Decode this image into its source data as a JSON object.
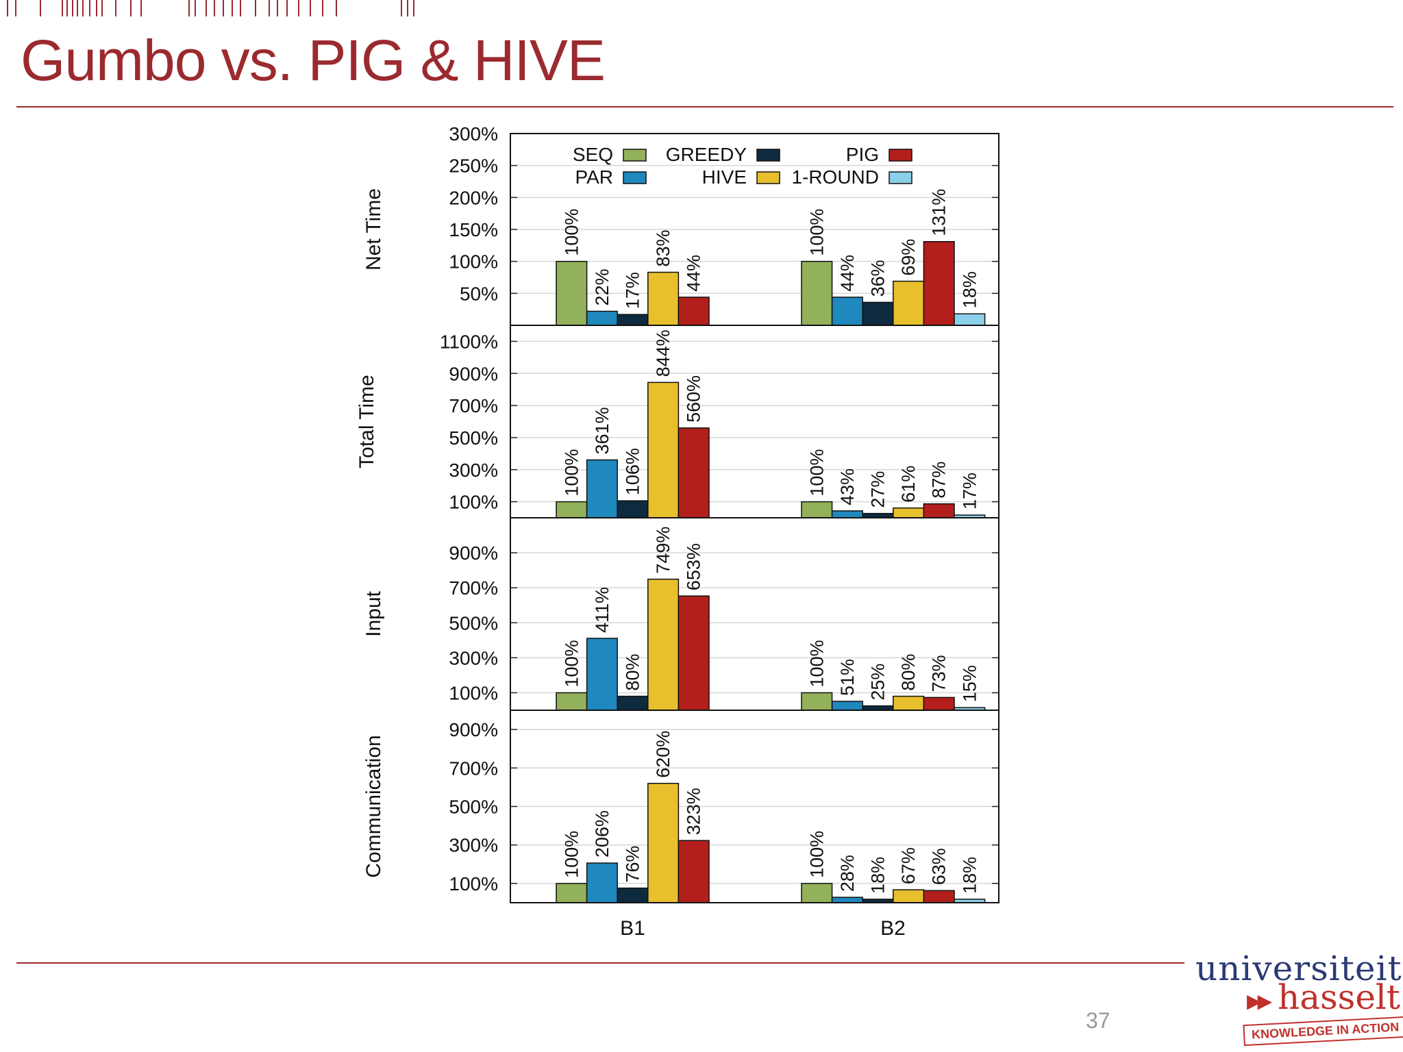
{
  "slide": {
    "title": "Gumbo vs. PIG & HIVE",
    "page_number": "37",
    "logo": {
      "line1": "universiteit",
      "arrows": "▶▶",
      "line2": "hasselt",
      "tagline": "KNOWLEDGE IN ACTION"
    }
  },
  "colors": {
    "accent": "#9b2a2f",
    "SEQ": "#93b05a",
    "PAR": "#1f88bd",
    "GREEDY": "#0e2a3e",
    "HIVE": "#e8bf2d",
    "PIG": "#b31f1c",
    "1-ROUND": "#8ccfe8"
  },
  "chart_data": {
    "type": "bar",
    "categories": [
      "B1",
      "B2"
    ],
    "legend": [
      "SEQ",
      "PAR",
      "GREEDY",
      "HIVE",
      "PIG",
      "1-ROUND"
    ],
    "panels": [
      {
        "ylabel": "Net Time",
        "ylim": [
          0,
          300
        ],
        "ticks": [
          50,
          100,
          150,
          200,
          250,
          300
        ],
        "tick_labels": [
          "50%",
          "100%",
          "150%",
          "200%",
          "250%",
          "300%"
        ],
        "series": [
          {
            "name": "SEQ",
            "values": [
              100,
              100
            ],
            "labels": [
              "100%",
              "100%"
            ]
          },
          {
            "name": "PAR",
            "values": [
              22,
              44
            ],
            "labels": [
              "22%",
              "44%"
            ]
          },
          {
            "name": "GREEDY",
            "values": [
              17,
              36
            ],
            "labels": [
              "17%",
              "36%"
            ]
          },
          {
            "name": "HIVE",
            "values": [
              83,
              69
            ],
            "labels": [
              "83%",
              "69%"
            ]
          },
          {
            "name": "PIG",
            "values": [
              44,
              131
            ],
            "labels": [
              "44%",
              "131%"
            ]
          },
          {
            "name": "1-ROUND",
            "values": [
              null,
              18
            ],
            "labels": [
              "",
              "18%"
            ]
          }
        ]
      },
      {
        "ylabel": "Total Time",
        "ylim": [
          0,
          1200
        ],
        "ticks": [
          100,
          300,
          500,
          700,
          900,
          1100
        ],
        "tick_labels": [
          "100%",
          "300%",
          "500%",
          "700%",
          "900%",
          "1100%"
        ],
        "series": [
          {
            "name": "SEQ",
            "values": [
              100,
              100
            ],
            "labels": [
              "100%",
              "100%"
            ]
          },
          {
            "name": "PAR",
            "values": [
              361,
              43
            ],
            "labels": [
              "361%",
              "43%"
            ]
          },
          {
            "name": "GREEDY",
            "values": [
              106,
              27
            ],
            "labels": [
              "106%",
              "27%"
            ]
          },
          {
            "name": "HIVE",
            "values": [
              844,
              61
            ],
            "labels": [
              "844%",
              "61%"
            ]
          },
          {
            "name": "PIG",
            "values": [
              560,
              87
            ],
            "labels": [
              "560%",
              "87%"
            ]
          },
          {
            "name": "1-ROUND",
            "values": [
              null,
              17
            ],
            "labels": [
              "",
              "17%"
            ]
          }
        ]
      },
      {
        "ylabel": "Input",
        "ylim": [
          0,
          1100
        ],
        "ticks": [
          100,
          300,
          500,
          700,
          900
        ],
        "tick_labels": [
          "100%",
          "300%",
          "500%",
          "700%",
          "900%"
        ],
        "series": [
          {
            "name": "SEQ",
            "values": [
              100,
              100
            ],
            "labels": [
              "100%",
              "100%"
            ]
          },
          {
            "name": "PAR",
            "values": [
              411,
              51
            ],
            "labels": [
              "411%",
              "51%"
            ]
          },
          {
            "name": "GREEDY",
            "values": [
              80,
              25
            ],
            "labels": [
              "80%",
              "25%"
            ]
          },
          {
            "name": "HIVE",
            "values": [
              749,
              80
            ],
            "labels": [
              "749%",
              "80%"
            ]
          },
          {
            "name": "PIG",
            "values": [
              653,
              73
            ],
            "labels": [
              "653%",
              "73%"
            ]
          },
          {
            "name": "1-ROUND",
            "values": [
              null,
              15
            ],
            "labels": [
              "",
              "15%"
            ]
          }
        ]
      },
      {
        "ylabel": "Communication",
        "ylim": [
          0,
          1000
        ],
        "ticks": [
          100,
          300,
          500,
          700,
          900
        ],
        "tick_labels": [
          "100%",
          "300%",
          "500%",
          "700%",
          "900%"
        ],
        "series": [
          {
            "name": "SEQ",
            "values": [
              100,
              100
            ],
            "labels": [
              "100%",
              "100%"
            ]
          },
          {
            "name": "PAR",
            "values": [
              206,
              28
            ],
            "labels": [
              "206%",
              "28%"
            ]
          },
          {
            "name": "GREEDY",
            "values": [
              76,
              18
            ],
            "labels": [
              "76%",
              "18%"
            ]
          },
          {
            "name": "HIVE",
            "values": [
              620,
              67
            ],
            "labels": [
              "620%",
              "67%"
            ]
          },
          {
            "name": "PIG",
            "values": [
              323,
              63
            ],
            "labels": [
              "323%",
              "63%"
            ]
          },
          {
            "name": "1-ROUND",
            "values": [
              null,
              18
            ],
            "labels": [
              "",
              "18%"
            ]
          }
        ]
      }
    ]
  }
}
